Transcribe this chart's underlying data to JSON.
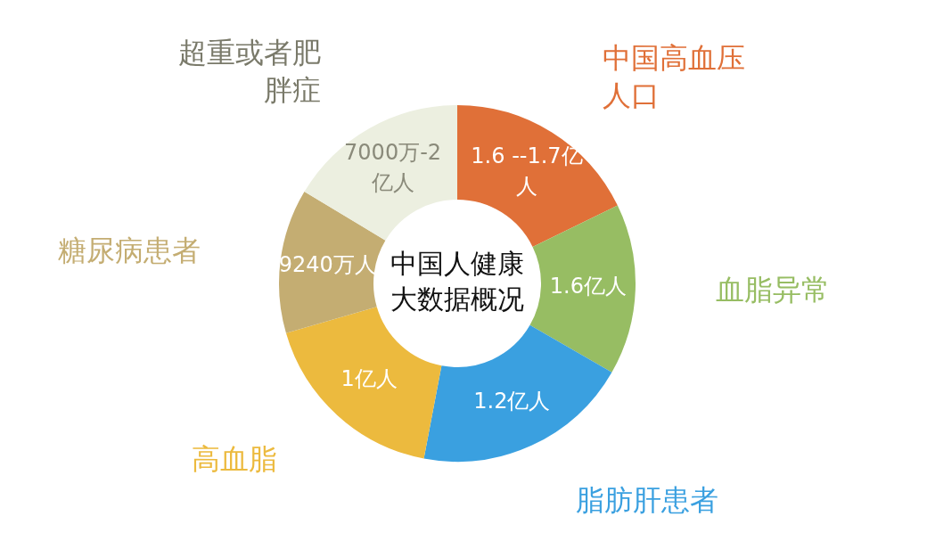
{
  "chart_data": {
    "type": "donut",
    "title": "中国人健康大数据概况",
    "categories": [
      "中国高血压人口",
      "血脂异常",
      "脂肪肝患者",
      "高血脂",
      "糖尿病患者",
      "超重或者肥胖症"
    ],
    "values": [
      17.8,
      15.5,
      19.7,
      17.5,
      13.1,
      16.4
    ],
    "colors": [
      "#e07038",
      "#97bd63",
      "#3aa0e0",
      "#ecba3e",
      "#c4ad72",
      "#ecefe0"
    ],
    "annotations": [
      "1.6 --1.7亿人",
      "1.6亿人",
      "1.2亿人",
      "1亿人",
      "9240万人",
      "7000万-2亿人"
    ],
    "legend": false
  }
}
